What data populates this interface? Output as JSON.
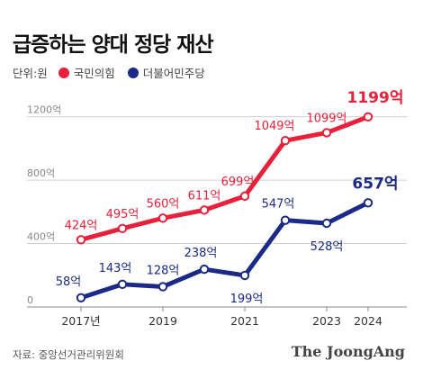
{
  "title": "급증하는 양대 정당 재산",
  "legend": {
    "unit": "단위:원"
  },
  "source": "자료: 중앙선거관리위원회",
  "brand": "The JoongAng",
  "colors": {
    "red": "#e8203a",
    "navy": "#1b2a88",
    "grid": "#d0d0d0"
  },
  "chart_data": {
    "type": "line",
    "x": [
      2017,
      2018,
      2019,
      2020,
      2021,
      2022,
      2023,
      2024
    ],
    "x_tick_labels": [
      {
        "x": 2017,
        "label": "2017년"
      },
      {
        "x": 2019,
        "label": "2019"
      },
      {
        "x": 2021,
        "label": "2021"
      },
      {
        "x": 2023,
        "label": "2023"
      },
      {
        "x": 2024,
        "label": "2024"
      }
    ],
    "y_ticks": [
      {
        "value": 0,
        "label": "0"
      },
      {
        "value": 400,
        "label": "400억"
      },
      {
        "value": 800,
        "label": "800억"
      },
      {
        "value": 1200,
        "label": "1200억"
      }
    ],
    "ylim": [
      0,
      1300
    ],
    "grid": "horizontal",
    "series": [
      {
        "name": "국민의힘",
        "color": "#e8203a",
        "values": [
          424,
          495,
          560,
          611,
          699,
          1049,
          1099,
          1199
        ],
        "labels": [
          "424억",
          "495억",
          "560억",
          "611억",
          "699억",
          "1049억",
          "1099억",
          "1199억"
        ]
      },
      {
        "name": "더불어민주당",
        "color": "#1b2a88",
        "values": [
          58,
          143,
          128,
          238,
          199,
          547,
          528,
          657
        ],
        "labels": [
          "58억",
          "143억",
          "128억",
          "238억",
          "199억",
          "547억",
          "528억",
          "657억"
        ]
      }
    ]
  }
}
